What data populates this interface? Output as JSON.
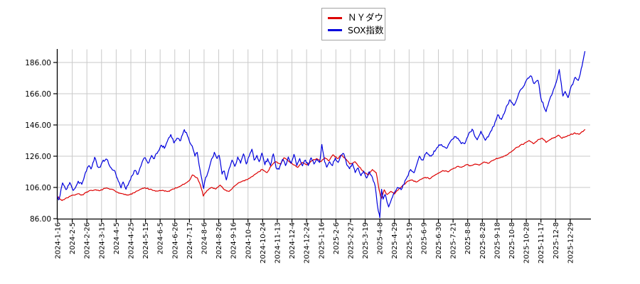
{
  "legend": {
    "items": [
      {
        "label": "ＮＹダウ",
        "color": "#dd0000"
      },
      {
        "label": "SOX指数",
        "color": "#0000dd"
      }
    ]
  },
  "colors": {
    "nydow_line": "#dd0000",
    "sox_line": "#0000dd",
    "grid": "#c9c9c9",
    "axis": "#000000",
    "tick_text": "#000000",
    "legend_border": "#a3a3a3",
    "background": "#ffffff"
  },
  "chart_data": {
    "type": "line",
    "title": "",
    "xlabel": "",
    "ylabel": "",
    "grid": true,
    "legend_position": "top-center",
    "x_label_rotation": -90,
    "ylim": [
      86,
      194.6
    ],
    "y_ticks": [
      86,
      106,
      126,
      146,
      166,
      186
    ],
    "y_tick_labels": [
      "86.00",
      "106.00",
      "126.00",
      "146.00",
      "166.00",
      "186.00"
    ],
    "x_tick_labels": [
      "2024-1-16",
      "2024-2-5",
      "2024-2-26",
      "2024-3-15",
      "2024-4-5",
      "2024-4-25",
      "2024-5-15",
      "2024-6-5",
      "2024-6-26",
      "2024-7-17",
      "2024-8-6",
      "2024-8-26",
      "2024-9-16",
      "2024-10-4",
      "2024-10-24",
      "2024-11-13",
      "2024-12-4",
      "2024-12-24",
      "2025-1-16",
      "2025-2-6",
      "2025-2-27",
      "2025-3-19",
      "2025-4-8",
      "2025-4-29",
      "2025-5-19",
      "2025-6-9",
      "2025-6-30",
      "2025-7-21",
      "2025-8-8",
      "2025-8-28",
      "2025-9-18",
      "2025-10-8",
      "2025-10-28",
      "2025-11-17",
      "2025-12-8",
      "2025-12-29"
    ],
    "x_unit": "tick-index (one tick = one x label; data extends one interval past last label)",
    "series": [
      {
        "name": "ＮＹダウ",
        "color": "#dd0000",
        "jitter": 0.55,
        "seed": 7,
        "points": [
          [
            0,
            100
          ],
          [
            0.3,
            97.6
          ],
          [
            0.6,
            99.3
          ],
          [
            1.0,
            101
          ],
          [
            1.4,
            102
          ],
          [
            1.7,
            101.2
          ],
          [
            2.1,
            103.5
          ],
          [
            2.5,
            104.3
          ],
          [
            2.9,
            104
          ],
          [
            3.3,
            105.6
          ],
          [
            3.7,
            104.8
          ],
          [
            4.05,
            103
          ],
          [
            4.35,
            102.2
          ],
          [
            4.8,
            101
          ],
          [
            5.2,
            102.5
          ],
          [
            5.6,
            104.5
          ],
          [
            5.95,
            105.8
          ],
          [
            6.3,
            104.8
          ],
          [
            6.7,
            103.6
          ],
          [
            7.1,
            104
          ],
          [
            7.5,
            103.4
          ],
          [
            7.9,
            105
          ],
          [
            8.3,
            106.5
          ],
          [
            8.7,
            108.5
          ],
          [
            9.0,
            110.5
          ],
          [
            9.2,
            114
          ],
          [
            9.55,
            112
          ],
          [
            9.75,
            107.5
          ],
          [
            9.95,
            100.5
          ],
          [
            10.2,
            104
          ],
          [
            10.5,
            106
          ],
          [
            10.8,
            105
          ],
          [
            11.1,
            107.5
          ],
          [
            11.35,
            104.8
          ],
          [
            11.7,
            103.4
          ],
          [
            12.1,
            107
          ],
          [
            12.5,
            109.5
          ],
          [
            12.9,
            111
          ],
          [
            13.3,
            113
          ],
          [
            13.7,
            116
          ],
          [
            14.0,
            117.5
          ],
          [
            14.3,
            115.5
          ],
          [
            14.6,
            120
          ],
          [
            14.9,
            122.5
          ],
          [
            15.2,
            121
          ],
          [
            15.45,
            125
          ],
          [
            15.8,
            122.5
          ],
          [
            16.1,
            120.5
          ],
          [
            16.4,
            118.8
          ],
          [
            16.7,
            122
          ],
          [
            17.0,
            120.5
          ],
          [
            17.35,
            123
          ],
          [
            17.7,
            124.5
          ],
          [
            17.95,
            122.5
          ],
          [
            18.25,
            125
          ],
          [
            18.5,
            123
          ],
          [
            18.8,
            126.9
          ],
          [
            19.1,
            124.5
          ],
          [
            19.4,
            126.8
          ],
          [
            19.7,
            124
          ],
          [
            19.95,
            121
          ],
          [
            20.3,
            122.5
          ],
          [
            20.6,
            119
          ],
          [
            20.9,
            116
          ],
          [
            21.2,
            113.8
          ],
          [
            21.5,
            117.5
          ],
          [
            21.75,
            115.5
          ],
          [
            21.95,
            104.5
          ],
          [
            22.1,
            98.8
          ],
          [
            22.3,
            104.5
          ],
          [
            22.5,
            101.5
          ],
          [
            22.75,
            103.5
          ],
          [
            23.0,
            101.8
          ],
          [
            23.3,
            105
          ],
          [
            23.6,
            107.5
          ],
          [
            23.9,
            110
          ],
          [
            24.2,
            110.8
          ],
          [
            24.5,
            109.5
          ],
          [
            24.8,
            111.2
          ],
          [
            25.1,
            112.5
          ],
          [
            25.4,
            111.5
          ],
          [
            25.7,
            113.5
          ],
          [
            26.0,
            115
          ],
          [
            26.3,
            116.8
          ],
          [
            26.65,
            116
          ],
          [
            27.0,
            118
          ],
          [
            27.3,
            119.5
          ],
          [
            27.6,
            119
          ],
          [
            27.9,
            120.5
          ],
          [
            28.2,
            119.8
          ],
          [
            28.5,
            121
          ],
          [
            28.8,
            120.3
          ],
          [
            29.1,
            122.3
          ],
          [
            29.45,
            121.5
          ],
          [
            29.75,
            123.5
          ],
          [
            30.05,
            124.5
          ],
          [
            30.4,
            125.5
          ],
          [
            30.7,
            127
          ],
          [
            31.0,
            129
          ],
          [
            31.3,
            131.5
          ],
          [
            31.6,
            133
          ],
          [
            31.9,
            134.5
          ],
          [
            32.2,
            136
          ],
          [
            32.5,
            134
          ],
          [
            32.8,
            136.5
          ],
          [
            33.1,
            137.5
          ],
          [
            33.35,
            134.8
          ],
          [
            33.6,
            136.5
          ],
          [
            33.9,
            138
          ],
          [
            34.2,
            139.5
          ],
          [
            34.45,
            137.5
          ],
          [
            34.7,
            138.5
          ],
          [
            35.0,
            139.8
          ],
          [
            35.3,
            141
          ],
          [
            35.6,
            140
          ],
          [
            36,
            143
          ]
        ]
      },
      {
        "name": "SOX指数",
        "color": "#0000dd",
        "jitter": 1.1,
        "seed": 13,
        "points": [
          [
            0,
            100
          ],
          [
            0.1,
            98.5
          ],
          [
            0.34,
            108.9
          ],
          [
            0.58,
            104.6
          ],
          [
            0.83,
            109.2
          ],
          [
            1.07,
            104.1
          ],
          [
            1.41,
            110
          ],
          [
            1.65,
            108
          ],
          [
            1.9,
            115.5
          ],
          [
            2.14,
            120
          ],
          [
            2.28,
            117.8
          ],
          [
            2.53,
            125.3
          ],
          [
            2.72,
            119.5
          ],
          [
            2.92,
            119
          ],
          [
            3.11,
            123.5
          ],
          [
            3.35,
            124
          ],
          [
            3.6,
            119
          ],
          [
            3.84,
            117
          ],
          [
            4.08,
            112
          ],
          [
            4.33,
            105.7
          ],
          [
            4.47,
            109.5
          ],
          [
            4.67,
            104.8
          ],
          [
            4.91,
            110
          ],
          [
            5.1,
            113.5
          ],
          [
            5.3,
            116.9
          ],
          [
            5.49,
            114.5
          ],
          [
            5.78,
            122.5
          ],
          [
            5.98,
            125
          ],
          [
            6.17,
            121.5
          ],
          [
            6.42,
            126.5
          ],
          [
            6.61,
            124.5
          ],
          [
            6.85,
            129
          ],
          [
            7.1,
            133
          ],
          [
            7.29,
            131
          ],
          [
            7.53,
            136.5
          ],
          [
            7.73,
            139.8
          ],
          [
            7.95,
            134.5
          ],
          [
            8.15,
            137.5
          ],
          [
            8.4,
            136
          ],
          [
            8.65,
            143
          ],
          [
            8.8,
            141
          ],
          [
            9.04,
            134.5
          ],
          [
            9.19,
            132.5
          ],
          [
            9.38,
            126
          ],
          [
            9.53,
            128.5
          ],
          [
            9.72,
            117.5
          ],
          [
            9.87,
            110
          ],
          [
            9.97,
            105.3
          ],
          [
            10.11,
            112.5
          ],
          [
            10.31,
            117
          ],
          [
            10.45,
            122
          ],
          [
            10.7,
            128.5
          ],
          [
            10.89,
            124.5
          ],
          [
            11.03,
            126.5
          ],
          [
            11.23,
            114.5
          ],
          [
            11.38,
            116.5
          ],
          [
            11.52,
            110.8
          ],
          [
            11.71,
            118
          ],
          [
            11.91,
            123.5
          ],
          [
            12.1,
            119.5
          ],
          [
            12.3,
            125.5
          ],
          [
            12.49,
            121.5
          ],
          [
            12.69,
            127.5
          ],
          [
            12.88,
            121
          ],
          [
            13.08,
            126
          ],
          [
            13.27,
            130.5
          ],
          [
            13.42,
            123.5
          ],
          [
            13.61,
            126.5
          ],
          [
            13.76,
            122.5
          ],
          [
            13.95,
            128
          ],
          [
            14.15,
            120.5
          ],
          [
            14.34,
            124.5
          ],
          [
            14.53,
            120
          ],
          [
            14.73,
            127.5
          ],
          [
            14.92,
            118.5
          ],
          [
            15.12,
            117.6
          ],
          [
            15.36,
            124
          ],
          [
            15.56,
            120
          ],
          [
            15.75,
            125.5
          ],
          [
            15.95,
            121.5
          ],
          [
            16.14,
            127.2
          ],
          [
            16.33,
            120
          ],
          [
            16.53,
            124.5
          ],
          [
            16.72,
            119.8
          ],
          [
            16.92,
            123.5
          ],
          [
            17.11,
            120
          ],
          [
            17.31,
            125
          ],
          [
            17.5,
            121
          ],
          [
            17.7,
            124
          ],
          [
            17.89,
            122
          ],
          [
            18.04,
            133.5
          ],
          [
            18.23,
            122.5
          ],
          [
            18.38,
            119
          ],
          [
            18.57,
            122.5
          ],
          [
            18.77,
            120
          ],
          [
            18.96,
            124.8
          ],
          [
            19.16,
            122
          ],
          [
            19.35,
            126.5
          ],
          [
            19.54,
            127.5
          ],
          [
            19.74,
            120.5
          ],
          [
            19.93,
            118
          ],
          [
            20.13,
            121.5
          ],
          [
            20.32,
            115.5
          ],
          [
            20.52,
            118.5
          ],
          [
            20.71,
            113.5
          ],
          [
            20.9,
            116.5
          ],
          [
            21.1,
            112
          ],
          [
            21.29,
            116
          ],
          [
            21.49,
            112.5
          ],
          [
            21.68,
            107
          ],
          [
            21.83,
            95
          ],
          [
            22.0,
            86.6
          ],
          [
            22.12,
            104.8
          ],
          [
            22.22,
            98.5
          ],
          [
            22.36,
            101.5
          ],
          [
            22.6,
            93.5
          ],
          [
            22.9,
            101
          ],
          [
            23.2,
            106
          ],
          [
            23.45,
            104.5
          ],
          [
            23.8,
            111.5
          ],
          [
            24.1,
            117.5
          ],
          [
            24.35,
            115.5
          ],
          [
            24.7,
            126
          ],
          [
            24.95,
            123.5
          ],
          [
            25.2,
            128.5
          ],
          [
            25.5,
            126
          ],
          [
            25.9,
            131.5
          ],
          [
            26.2,
            133.5
          ],
          [
            26.55,
            131
          ],
          [
            26.9,
            136.5
          ],
          [
            27.2,
            138.5
          ],
          [
            27.5,
            135
          ],
          [
            27.8,
            134
          ],
          [
            28.05,
            140
          ],
          [
            28.3,
            143.3
          ],
          [
            28.65,
            136.5
          ],
          [
            28.9,
            142
          ],
          [
            29.2,
            136.2
          ],
          [
            29.5,
            140.5
          ],
          [
            29.8,
            145.5
          ],
          [
            30.05,
            152.5
          ],
          [
            30.3,
            149.5
          ],
          [
            30.65,
            158
          ],
          [
            30.9,
            162
          ],
          [
            31.15,
            158.5
          ],
          [
            31.5,
            166.5
          ],
          [
            31.8,
            170.5
          ],
          [
            32.1,
            176
          ],
          [
            32.3,
            177.5
          ],
          [
            32.55,
            172.5
          ],
          [
            32.8,
            174.5
          ],
          [
            33.0,
            163
          ],
          [
            33.35,
            154.5
          ],
          [
            33.6,
            162.5
          ],
          [
            33.85,
            168.5
          ],
          [
            34.05,
            173.5
          ],
          [
            34.25,
            181.5
          ],
          [
            34.5,
            164.5
          ],
          [
            34.65,
            167.5
          ],
          [
            34.85,
            163.5
          ],
          [
            35.1,
            171.5
          ],
          [
            35.35,
            176.5
          ],
          [
            35.55,
            174.5
          ],
          [
            35.8,
            183.5
          ],
          [
            36,
            193
          ]
        ]
      }
    ]
  }
}
